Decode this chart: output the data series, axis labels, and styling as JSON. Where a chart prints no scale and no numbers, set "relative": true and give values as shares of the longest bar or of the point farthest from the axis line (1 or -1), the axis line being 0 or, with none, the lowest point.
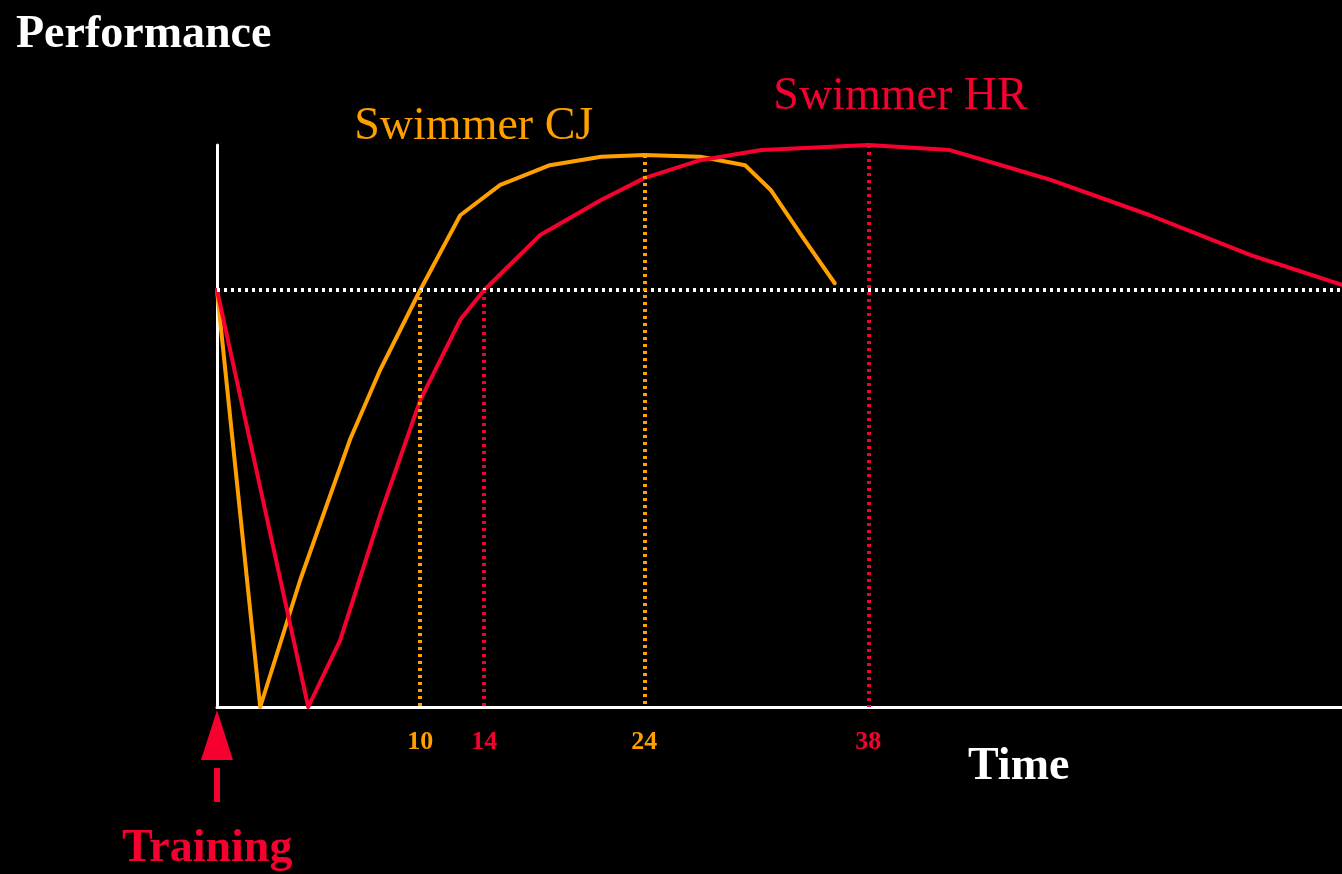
{
  "chart_data": {
    "type": "line",
    "relative": true,
    "ylabel": "Performance",
    "xlabel": "Time",
    "xlim": [
      -2.7,
      67.6
    ],
    "xticks": [
      10,
      14,
      24,
      38
    ],
    "grid": false,
    "marker": "none",
    "line_style": "solid",
    "annotations": [
      "Training"
    ],
    "series": [
      {
        "name": "Swimmer CJ",
        "color": "#ffa000",
        "x": [
          -2.7,
          0,
          2.5,
          5.6,
          7.5,
          10,
          12.5,
          15,
          18.1,
          21.3,
          24,
          27.5,
          30.3,
          31.9,
          33.8,
          35.9
        ],
        "values": [
          0.742,
          0,
          0.226,
          0.475,
          0.6,
          0.742,
          0.875,
          0.929,
          0.964,
          0.979,
          0.982,
          0.979,
          0.964,
          0.92,
          0.84,
          0.754
        ]
      },
      {
        "name": "Swimmer HR",
        "color": "#f5002f",
        "x": [
          -2.7,
          3,
          5,
          7.5,
          10,
          12.5,
          14,
          17.5,
          21.3,
          24,
          27.5,
          31.3,
          38,
          43.1,
          49.4,
          55.6,
          61.9,
          67.6
        ],
        "values": [
          0.742,
          0,
          0.119,
          0.342,
          0.546,
          0.689,
          0.742,
          0.84,
          0.902,
          0.941,
          0.973,
          0.991,
          1,
          0.991,
          0.938,
          0.875,
          0.804,
          0.751
        ]
      }
    ],
    "ref_lines": [
      {
        "axis": "y",
        "value": 0.742,
        "color": "#ffffff",
        "line_style": "dotted"
      },
      {
        "axis": "x",
        "value": 10,
        "color": "#ffa000",
        "line_style": "dotted"
      },
      {
        "axis": "x",
        "value": 14,
        "color": "#f5002f",
        "line_style": "dotted"
      },
      {
        "axis": "x",
        "value": 24,
        "color": "#ffa000",
        "line_style": "dotted"
      },
      {
        "axis": "x",
        "value": 38,
        "color": "#f5002f",
        "line_style": "dotted"
      }
    ]
  }
}
